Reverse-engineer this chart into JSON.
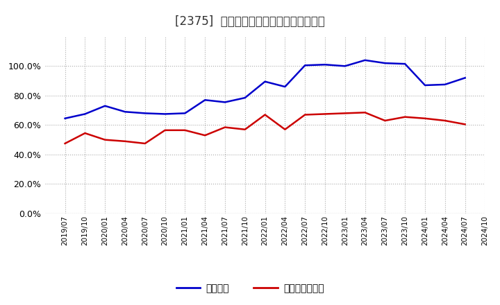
{
  "title": "[2375]  固定比率、固定長期適合率の推移",
  "x_labels": [
    "2019/07",
    "2019/10",
    "2020/01",
    "2020/04",
    "2020/07",
    "2020/10",
    "2021/01",
    "2021/04",
    "2021/07",
    "2021/10",
    "2022/01",
    "2022/04",
    "2022/07",
    "2022/10",
    "2023/01",
    "2023/04",
    "2023/07",
    "2023/10",
    "2024/01",
    "2024/04",
    "2024/07",
    "2024/10"
  ],
  "fixed_ratio": [
    64.5,
    67.5,
    73.0,
    69.0,
    68.0,
    67.5,
    68.0,
    77.0,
    75.5,
    78.5,
    89.5,
    86.0,
    100.5,
    101.0,
    100.0,
    104.0,
    102.0,
    101.5,
    87.0,
    87.5,
    92.0,
    null
  ],
  "fixed_long_ratio": [
    47.5,
    54.5,
    50.0,
    49.0,
    47.5,
    56.5,
    56.5,
    53.0,
    58.5,
    57.0,
    67.0,
    57.0,
    67.0,
    67.5,
    68.0,
    68.5,
    63.0,
    65.5,
    64.5,
    63.0,
    60.5,
    null
  ],
  "line_color_blue": "#0000cc",
  "line_color_red": "#cc0000",
  "bg_color": "#ffffff",
  "plot_bg_color": "#ffffff",
  "grid_color": "#aaaaaa",
  "title_color": "#333333",
  "legend_blue": "固定比率",
  "legend_red": "固定長期適合率",
  "ylim": [
    0.0,
    120.0
  ],
  "yticks": [
    0.0,
    20.0,
    40.0,
    60.0,
    80.0,
    100.0
  ]
}
